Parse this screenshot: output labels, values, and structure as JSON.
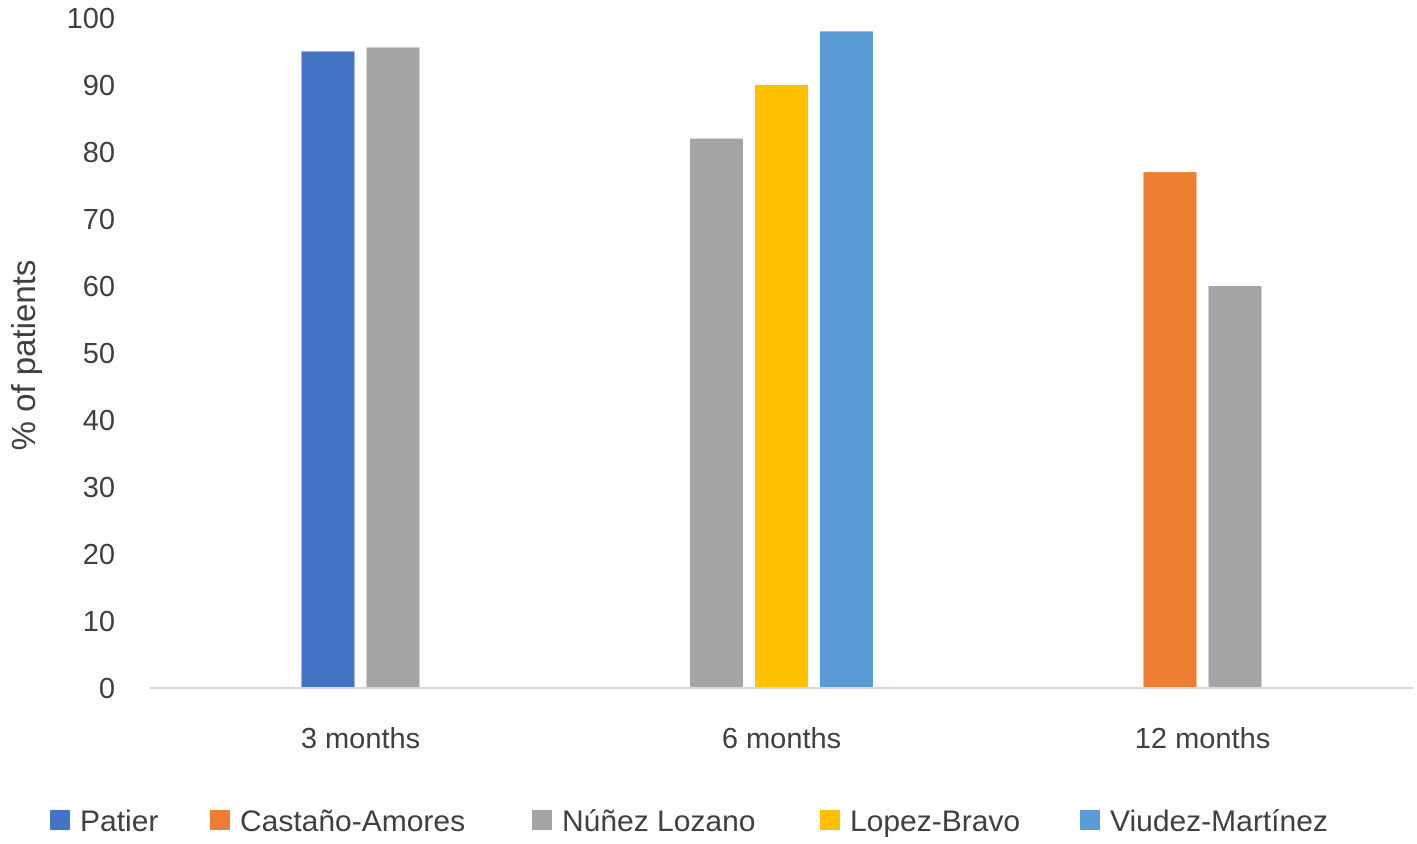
{
  "chart_data": {
    "type": "bar",
    "categories": [
      "3 months",
      "6 months",
      "12 months"
    ],
    "ylabel": "% of patients",
    "xlabel": "",
    "ylim": [
      0,
      100
    ],
    "yticks": [
      0,
      10,
      20,
      30,
      40,
      50,
      60,
      70,
      80,
      90,
      100
    ],
    "grid": false,
    "legend_position": "bottom",
    "series": [
      {
        "name": "Patier",
        "color": "#4472C4",
        "values": [
          95,
          null,
          null
        ]
      },
      {
        "name": "Castaño-Amores",
        "color": "#ED7D31",
        "values": [
          null,
          null,
          77
        ]
      },
      {
        "name": "Núñez Lozano",
        "color": "#A5A5A5",
        "values": [
          95.6,
          82,
          60
        ]
      },
      {
        "name": "Lopez-Bravo",
        "color": "#FFC000",
        "values": [
          null,
          90,
          null
        ]
      },
      {
        "name": "Viudez-Martínez",
        "color": "#5B9BD5",
        "values": [
          null,
          98,
          null
        ]
      }
    ],
    "bar_order": [
      [
        "Patier",
        "Núñez Lozano"
      ],
      [
        "Núñez Lozano",
        "Lopez-Bravo",
        "Viudez-Martínez"
      ],
      [
        "Castaño-Amores",
        "Núñez Lozano"
      ]
    ]
  }
}
